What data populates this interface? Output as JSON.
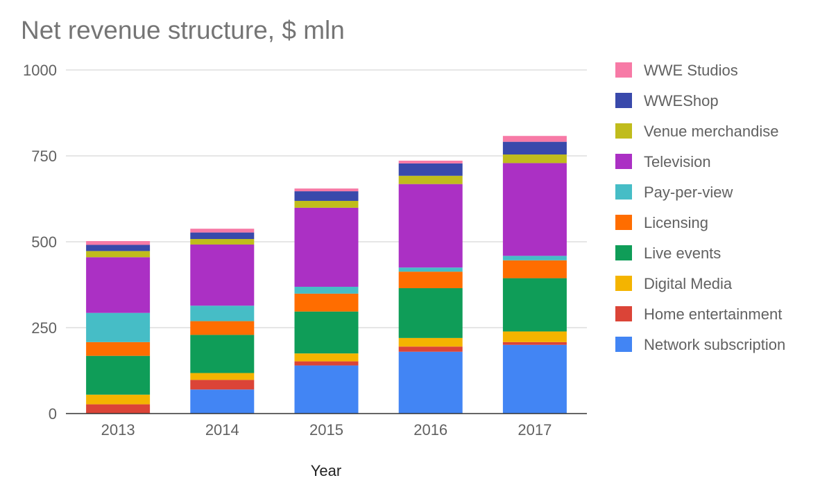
{
  "chart_data": {
    "type": "bar",
    "stacked": true,
    "title": "Net revenue structure, $ mln",
    "xlabel": "Year",
    "ylabel": "",
    "ylim": [
      0,
      1000
    ],
    "yticks": [
      0,
      250,
      500,
      750,
      1000
    ],
    "grid": true,
    "legend_position": "right",
    "categories": [
      "2013",
      "2014",
      "2015",
      "2016",
      "2017"
    ],
    "series": [
      {
        "name": "Network subscription",
        "color": "#4285F4",
        "values": [
          0,
          70,
          140,
          180,
          200
        ]
      },
      {
        "name": "Home entertainment",
        "color": "#DB4437",
        "values": [
          27,
          28,
          12,
          15,
          8
        ]
      },
      {
        "name": "Digital Media",
        "color": "#F4B400",
        "values": [
          28,
          20,
          23,
          25,
          31
        ]
      },
      {
        "name": "Live events",
        "color": "#0F9D58",
        "values": [
          113,
          111,
          122,
          145,
          155
        ]
      },
      {
        "name": "Licensing",
        "color": "#FF6D00",
        "values": [
          40,
          40,
          52,
          48,
          52
        ]
      },
      {
        "name": "Pay-per-view",
        "color": "#46BDC6",
        "values": [
          85,
          45,
          20,
          12,
          13
        ]
      },
      {
        "name": "Television",
        "color": "#AB30C4",
        "values": [
          162,
          178,
          230,
          243,
          270
        ]
      },
      {
        "name": "Venue merchandise",
        "color": "#C0BC1C",
        "values": [
          18,
          16,
          20,
          24,
          25
        ]
      },
      {
        "name": "WWEShop",
        "color": "#3949AB",
        "values": [
          18,
          19,
          28,
          36,
          37
        ]
      },
      {
        "name": "WWE Studios",
        "color": "#F77AA6",
        "values": [
          11,
          11,
          8,
          8,
          17
        ]
      }
    ]
  }
}
